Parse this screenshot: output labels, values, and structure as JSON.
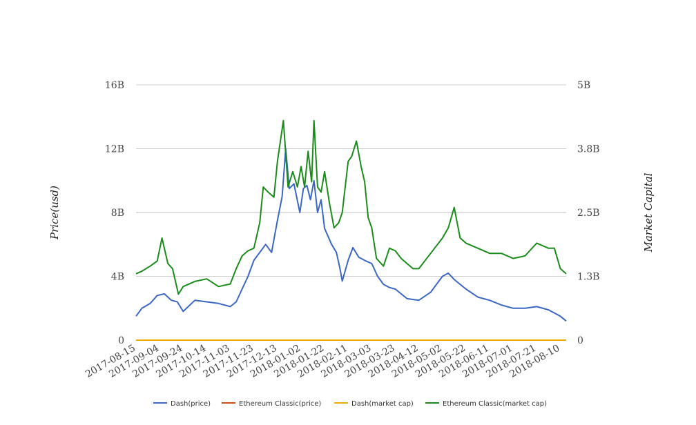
{
  "chart_data": {
    "type": "line",
    "xlabel": "",
    "ylabel": "Price(usd)",
    "y2label": "Market Capital",
    "x_ticks": [
      "2017-08-15",
      "2017-09-04",
      "2017-09-24",
      "2017-10-14",
      "2017-11-03",
      "2017-11-23",
      "2017-12-13",
      "2018-01-02",
      "2018-01-22",
      "2018-02-11",
      "2018-03-03",
      "2018-03-23",
      "2018-04-12",
      "2018-05-02",
      "2018-05-22",
      "2018-06-11",
      "2018-07-01",
      "2018-07-21",
      "2018-08-10"
    ],
    "y_ticks": [
      "0",
      "4B",
      "8B",
      "12B",
      "16B"
    ],
    "y2_ticks": [
      "0",
      "1.3B",
      "2.5B",
      "3.8B",
      "5B"
    ],
    "ylim": [
      0,
      16000000000
    ],
    "y2lim": [
      0,
      5000000000
    ],
    "grid": true,
    "legend_position": "bottom",
    "series": [
      {
        "name": "Dash(price)",
        "color": "#3a66c4",
        "axis": "left",
        "x": [
          "2017-08-15",
          "2017-08-20",
          "2017-08-27",
          "2017-09-02",
          "2017-09-08",
          "2017-09-14",
          "2017-09-19",
          "2017-09-24",
          "2017-10-04",
          "2017-10-14",
          "2017-10-24",
          "2017-11-03",
          "2017-11-08",
          "2017-11-13",
          "2017-11-18",
          "2017-11-23",
          "2017-11-28",
          "2017-12-03",
          "2017-12-08",
          "2017-12-13",
          "2017-12-17",
          "2017-12-20",
          "2017-12-23",
          "2017-12-27",
          "2018-01-01",
          "2018-01-04",
          "2018-01-07",
          "2018-01-10",
          "2018-01-13",
          "2018-01-16",
          "2018-01-19",
          "2018-01-22",
          "2018-01-25",
          "2018-01-28",
          "2018-02-01",
          "2018-02-04",
          "2018-02-06",
          "2018-02-11",
          "2018-02-15",
          "2018-02-20",
          "2018-02-25",
          "2018-03-03",
          "2018-03-08",
          "2018-03-13",
          "2018-03-18",
          "2018-03-23",
          "2018-04-02",
          "2018-04-12",
          "2018-04-22",
          "2018-05-02",
          "2018-05-07",
          "2018-05-12",
          "2018-05-22",
          "2018-06-01",
          "2018-06-11",
          "2018-06-21",
          "2018-07-01",
          "2018-07-11",
          "2018-07-21",
          "2018-07-31",
          "2018-08-10",
          "2018-08-15"
        ],
        "values": [
          1500000000.0,
          2000000000.0,
          2300000000.0,
          2800000000.0,
          2900000000.0,
          2500000000.0,
          2400000000.0,
          1800000000.0,
          2500000000.0,
          2400000000.0,
          2300000000.0,
          2100000000.0,
          2400000000.0,
          3200000000.0,
          4000000000.0,
          5000000000.0,
          5500000000.0,
          6000000000.0,
          5500000000.0,
          7500000000.0,
          9000000000.0,
          12000000000.0,
          9500000000.0,
          9800000000.0,
          8000000000.0,
          9500000000.0,
          9700000000.0,
          8800000000.0,
          10000000000.0,
          8000000000.0,
          8800000000.0,
          7000000000.0,
          6500000000.0,
          6000000000.0,
          5500000000.0,
          4500000000.0,
          3700000000.0,
          5000000000.0,
          5800000000.0,
          5200000000.0,
          5000000000.0,
          4800000000.0,
          4000000000.0,
          3500000000.0,
          3300000000.0,
          3200000000.0,
          2600000000.0,
          2500000000.0,
          3000000000.0,
          4000000000.0,
          4200000000.0,
          3800000000.0,
          3200000000.0,
          2700000000.0,
          2500000000.0,
          2200000000.0,
          2000000000.0,
          2000000000.0,
          2100000000.0,
          1900000000.0,
          1500000000.0,
          1200000000.0
        ]
      },
      {
        "name": "Ethereum Classic(price)",
        "color": "#d14a12",
        "axis": "left",
        "x": [
          "2017-08-15",
          "2018-08-15"
        ],
        "values": [
          0,
          0
        ]
      },
      {
        "name": "Dash(market cap)",
        "color": "#f2a900",
        "axis": "right",
        "x": [
          "2017-08-15",
          "2018-08-15"
        ],
        "values": [
          0,
          0
        ]
      },
      {
        "name": "Ethereum Classic(market cap)",
        "color": "#1a8c1a",
        "axis": "right",
        "x": [
          "2017-08-15",
          "2017-08-20",
          "2017-08-27",
          "2017-09-02",
          "2017-09-06",
          "2017-09-11",
          "2017-09-15",
          "2017-09-20",
          "2017-09-24",
          "2017-10-04",
          "2017-10-14",
          "2017-10-24",
          "2017-11-03",
          "2017-11-08",
          "2017-11-13",
          "2017-11-18",
          "2017-11-23",
          "2017-11-28",
          "2017-12-01",
          "2017-12-05",
          "2017-12-10",
          "2017-12-13",
          "2017-12-18",
          "2017-12-22",
          "2017-12-26",
          "2017-12-30",
          "2018-01-02",
          "2018-01-05",
          "2018-01-08",
          "2018-01-11",
          "2018-01-13",
          "2018-01-16",
          "2018-01-19",
          "2018-01-22",
          "2018-01-26",
          "2018-01-30",
          "2018-02-03",
          "2018-02-06",
          "2018-02-11",
          "2018-02-14",
          "2018-02-18",
          "2018-02-22",
          "2018-02-25",
          "2018-02-28",
          "2018-03-03",
          "2018-03-07",
          "2018-03-13",
          "2018-03-18",
          "2018-03-23",
          "2018-03-28",
          "2018-04-02",
          "2018-04-07",
          "2018-04-12",
          "2018-04-22",
          "2018-05-02",
          "2018-05-07",
          "2018-05-12",
          "2018-05-17",
          "2018-05-22",
          "2018-06-01",
          "2018-06-11",
          "2018-06-21",
          "2018-07-01",
          "2018-07-11",
          "2018-07-21",
          "2018-07-31",
          "2018-08-05",
          "2018-08-10",
          "2018-08-15"
        ],
        "values": [
          1300000000.0,
          1350000000.0,
          1450000000.0,
          1550000000.0,
          2000000000.0,
          1500000000.0,
          1400000000.0,
          900000000.0,
          1050000000.0,
          1150000000.0,
          1200000000.0,
          1050000000.0,
          1100000000.0,
          1400000000.0,
          1650000000.0,
          1750000000.0,
          1800000000.0,
          2300000000.0,
          3000000000.0,
          2900000000.0,
          2800000000.0,
          3500000000.0,
          4300000000.0,
          3000000000.0,
          3300000000.0,
          3000000000.0,
          3400000000.0,
          3000000000.0,
          3700000000.0,
          3100000000.0,
          4300000000.0,
          3000000000.0,
          2900000000.0,
          3300000000.0,
          2700000000.0,
          2200000000.0,
          2300000000.0,
          2500000000.0,
          3500000000.0,
          3600000000.0,
          3900000000.0,
          3400000000.0,
          3100000000.0,
          2400000000.0,
          2200000000.0,
          1600000000.0,
          1450000000.0,
          1800000000.0,
          1750000000.0,
          1600000000.0,
          1500000000.0,
          1400000000.0,
          1400000000.0,
          1700000000.0,
          2000000000.0,
          2200000000.0,
          2600000000.0,
          2000000000.0,
          1900000000.0,
          1800000000.0,
          1700000000.0,
          1700000000.0,
          1600000000.0,
          1650000000.0,
          1900000000.0,
          1800000000.0,
          1800000000.0,
          1400000000.0,
          1300000000.0
        ]
      }
    ]
  }
}
